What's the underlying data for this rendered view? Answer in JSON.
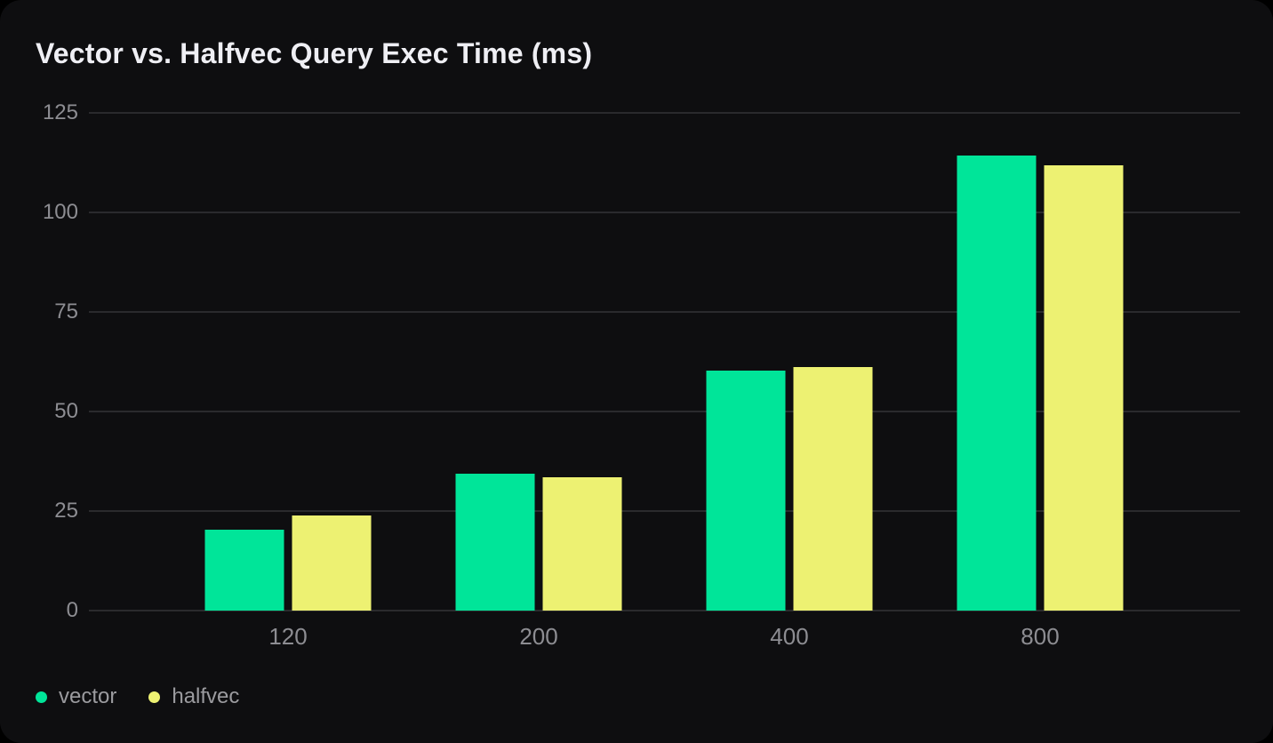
{
  "title": "Vector vs. Halfvec Query Exec Time (ms)",
  "colors": {
    "page_bg": "#000000",
    "card_bg": "#0e0e10",
    "gridline": "#2a2a2d",
    "title_text": "#efeff4",
    "axis_text": "#8d8d92",
    "legend_text": "#9b9b9f",
    "vector": "#00e599",
    "halfvec": "#edf172"
  },
  "chart_data": {
    "type": "bar",
    "title": "Vector vs. Halfvec Query Exec Time (ms)",
    "categories": [
      "120",
      "200",
      "400",
      "800"
    ],
    "series": [
      {
        "name": "vector",
        "color": "#00e599",
        "values": [
          20.3,
          34.4,
          60.3,
          114.4
        ]
      },
      {
        "name": "halfvec",
        "color": "#edf172",
        "values": [
          23.9,
          33.4,
          61.2,
          111.8
        ]
      }
    ],
    "xlabel": "",
    "ylabel": "",
    "ylim": [
      0,
      125
    ],
    "yticks": [
      0,
      25,
      50,
      75,
      100,
      125
    ],
    "grid": "horizontal",
    "legend_position": "bottom-left"
  },
  "legend": {
    "items": [
      {
        "label": "vector",
        "color": "#00e599"
      },
      {
        "label": "halfvec",
        "color": "#edf172"
      }
    ]
  }
}
